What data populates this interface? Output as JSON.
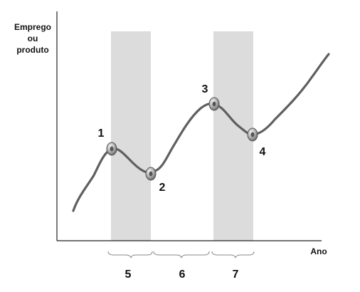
{
  "y_axis_label": [
    "Emprego",
    "ou",
    "produto"
  ],
  "x_axis_label": "Ano",
  "points": [
    {
      "label": "1"
    },
    {
      "label": "2"
    },
    {
      "label": "3"
    },
    {
      "label": "4"
    }
  ],
  "phases": [
    {
      "label": "5"
    },
    {
      "label": "6"
    },
    {
      "label": "7"
    }
  ],
  "colors": {
    "curve": "#5f5f5f",
    "shaded": "#dcdcdc",
    "axis": "#222222",
    "marker": "#9a9a9a"
  }
}
